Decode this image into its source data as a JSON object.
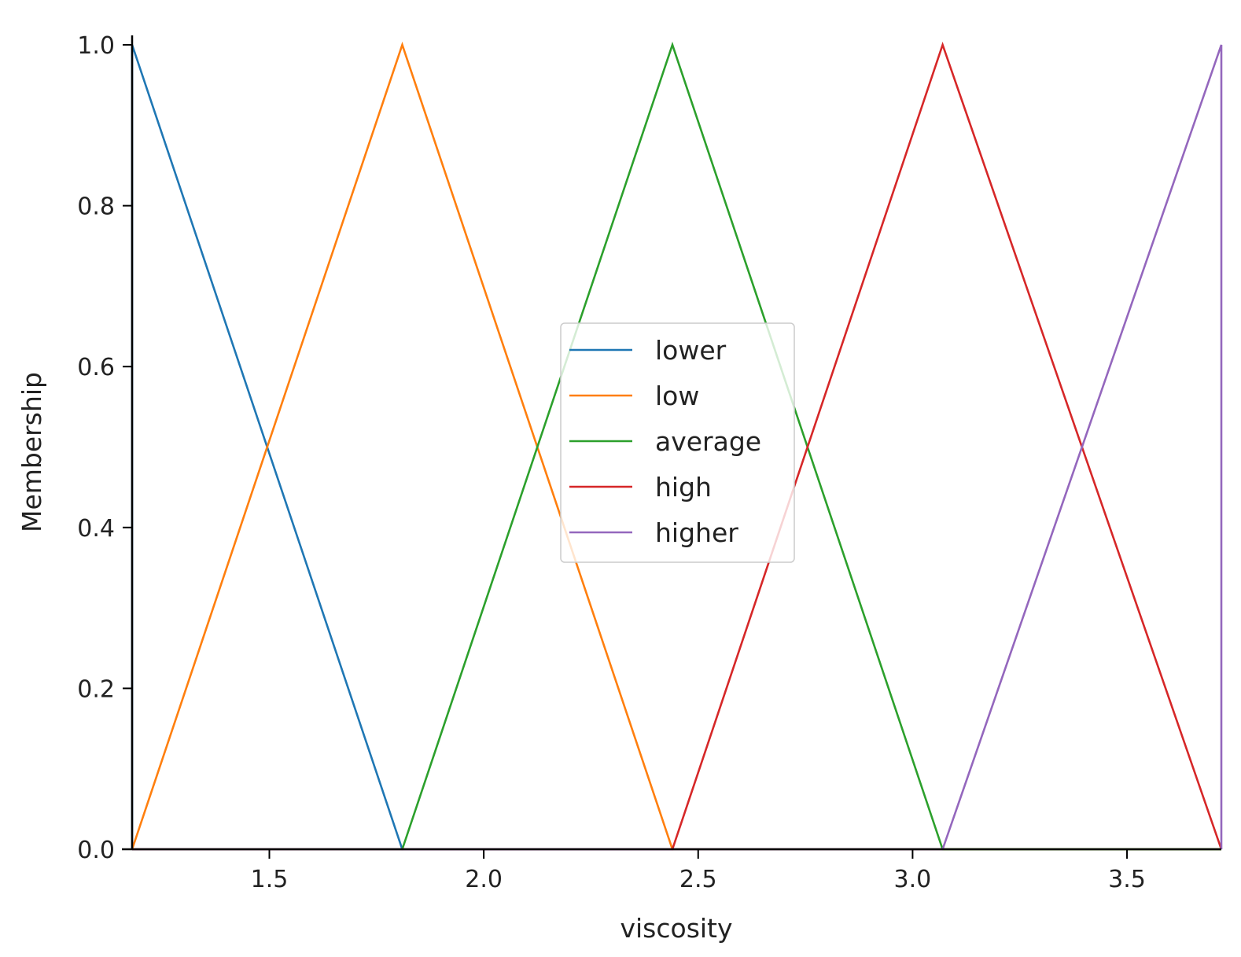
{
  "chart_data": {
    "type": "line",
    "xlabel": "viscosity",
    "ylabel": "Membership",
    "xlim": [
      1.18,
      3.72
    ],
    "ylim": [
      0,
      1
    ],
    "x_ticks": [
      "1.5",
      "2.0",
      "2.5",
      "3.0",
      "3.5"
    ],
    "y_ticks": [
      "0.0",
      "0.2",
      "0.4",
      "0.6",
      "0.8",
      "1.0"
    ],
    "grid": false,
    "legend_position": "center",
    "series": [
      {
        "name": "lower",
        "color": "#1f77b4",
        "x": [
          1.18,
          1.18,
          1.81,
          3.72
        ],
        "y": [
          0,
          1,
          0,
          0
        ]
      },
      {
        "name": "low",
        "color": "#ff7f0e",
        "x": [
          1.18,
          1.81,
          2.44,
          3.72
        ],
        "y": [
          0,
          1,
          0,
          0
        ]
      },
      {
        "name": "average",
        "color": "#2ca02c",
        "x": [
          1.18,
          1.81,
          2.44,
          3.07,
          3.72
        ],
        "y": [
          0,
          0,
          1,
          0,
          0
        ]
      },
      {
        "name": "high",
        "color": "#d62728",
        "x": [
          1.18,
          2.44,
          3.07,
          3.72
        ],
        "y": [
          0,
          0,
          1,
          0
        ]
      },
      {
        "name": "higher",
        "color": "#9467bd",
        "x": [
          1.18,
          3.07,
          3.72,
          3.72
        ],
        "y": [
          0,
          0,
          1,
          0
        ]
      }
    ]
  }
}
